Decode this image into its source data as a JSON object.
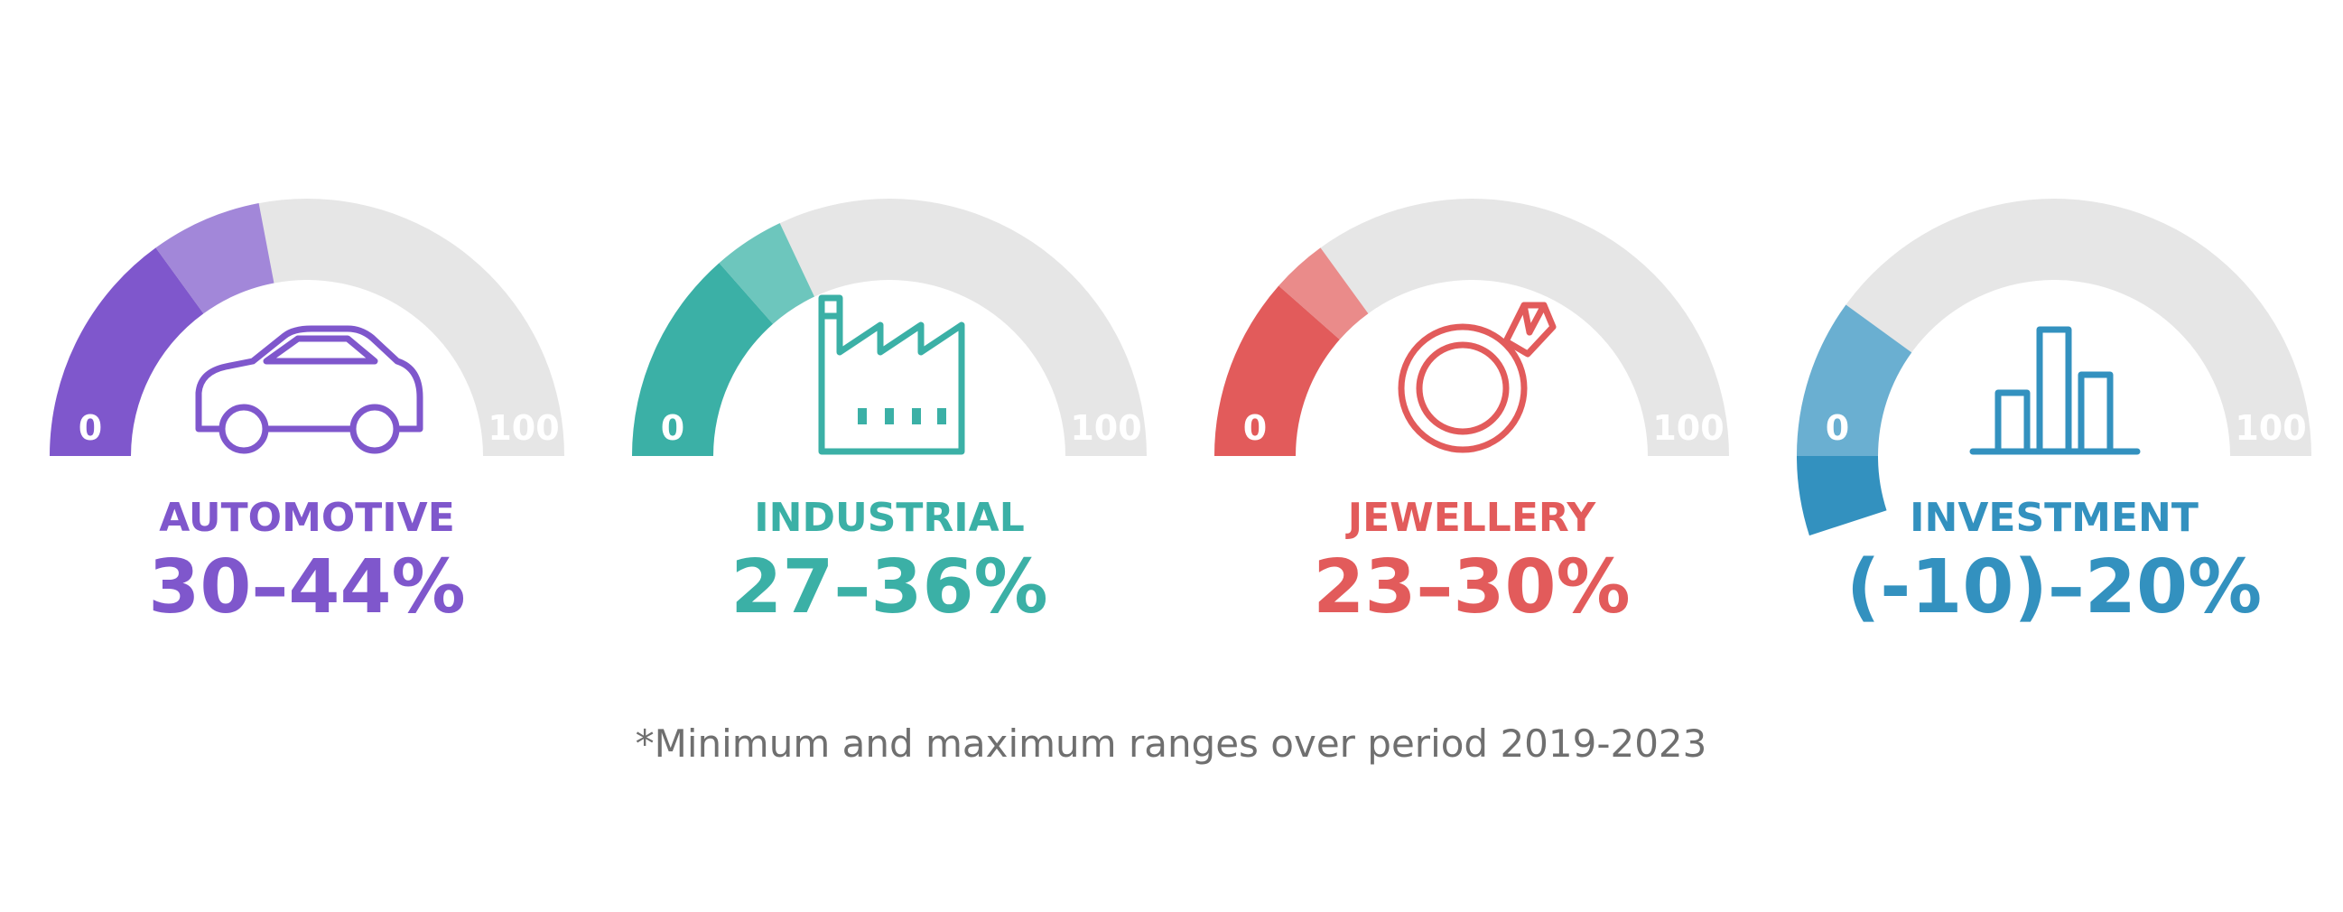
{
  "chart_data": {
    "type": "gauge",
    "axis": {
      "min": 0,
      "max": 100,
      "min_label": "0",
      "max_label": "100"
    },
    "track_color": "#e6e6e6",
    "gauges": [
      {
        "name": "AUTOMOTIVE",
        "range_label": "30–44%",
        "min": 30,
        "max": 44,
        "color": "#7f57cc",
        "light_color": "#a287d9",
        "icon": "car-icon"
      },
      {
        "name": "INDUSTRIAL",
        "range_label": "27–36%",
        "min": 27,
        "max": 36,
        "color": "#3bb0a6",
        "light_color": "#6dc6bd",
        "icon": "factory-icon"
      },
      {
        "name": "JEWELLERY",
        "range_label": "23–30%",
        "min": 23,
        "max": 30,
        "color": "#e25b5b",
        "light_color": "#ea8b8a",
        "icon": "ring-icon"
      },
      {
        "name": "INVESTMENT",
        "range_label": "(-10)–20%",
        "min": -10,
        "max": 20,
        "color": "#3391bf",
        "light_color": "#6aafd1",
        "icon": "bar-chart-icon"
      }
    ],
    "footnote": "*Minimum and maximum ranges over period 2019-2023"
  }
}
